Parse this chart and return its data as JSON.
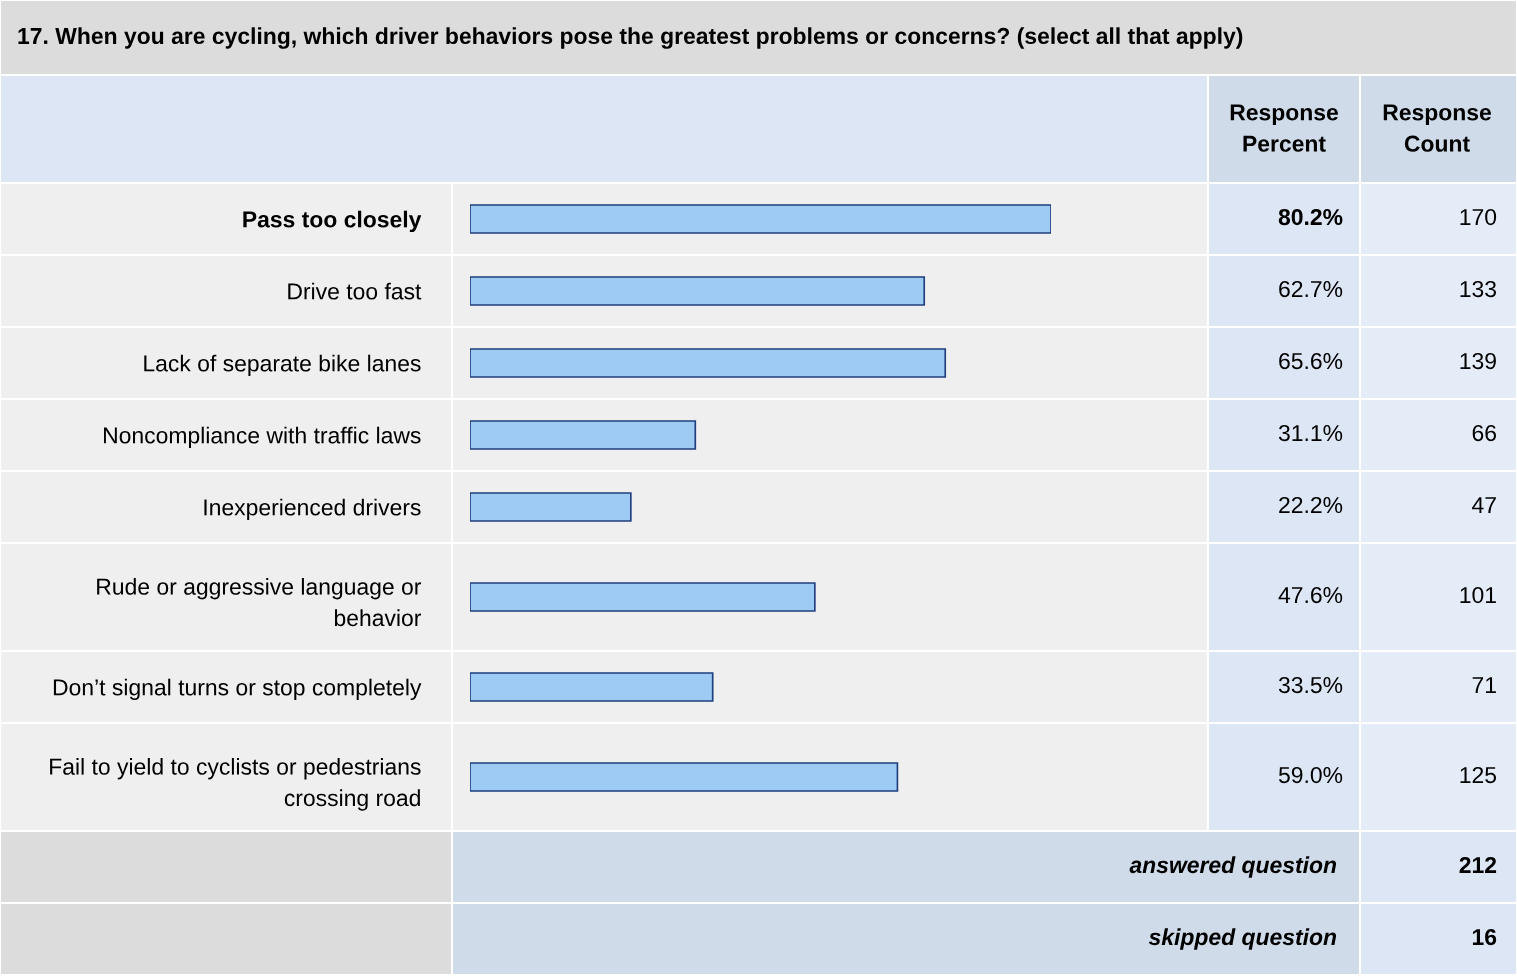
{
  "chart_data": {
    "type": "bar",
    "orientation": "horizontal",
    "title": "17. When you are cycling, which driver behaviors pose the greatest problems or concerns? (select all that apply)",
    "categories": [
      "Pass too closely",
      "Drive too fast",
      "Lack of separate bike lanes",
      "Noncompliance with traffic laws",
      "Inexperienced drivers",
      "Rude or aggressive language or behavior",
      "Don’t signal turns or stop completely",
      "Fail to yield to cyclists or pedestrians crossing road"
    ],
    "values": [
      80.2,
      62.7,
      65.6,
      31.1,
      22.2,
      47.6,
      33.5,
      59.0
    ],
    "value_labels": [
      "80.2%",
      "62.7%",
      "65.6%",
      "31.1%",
      "22.2%",
      "47.6%",
      "33.5%",
      "59.0%"
    ],
    "color": "#9ecbf3",
    "tick_labels": "y",
    "annotations": [
      "Response Percent",
      "Response Count",
      "170",
      "133",
      "139",
      "66",
      "47",
      "101",
      "71",
      "125",
      "answered question",
      "212",
      "skipped question",
      "16"
    ]
  }
}
